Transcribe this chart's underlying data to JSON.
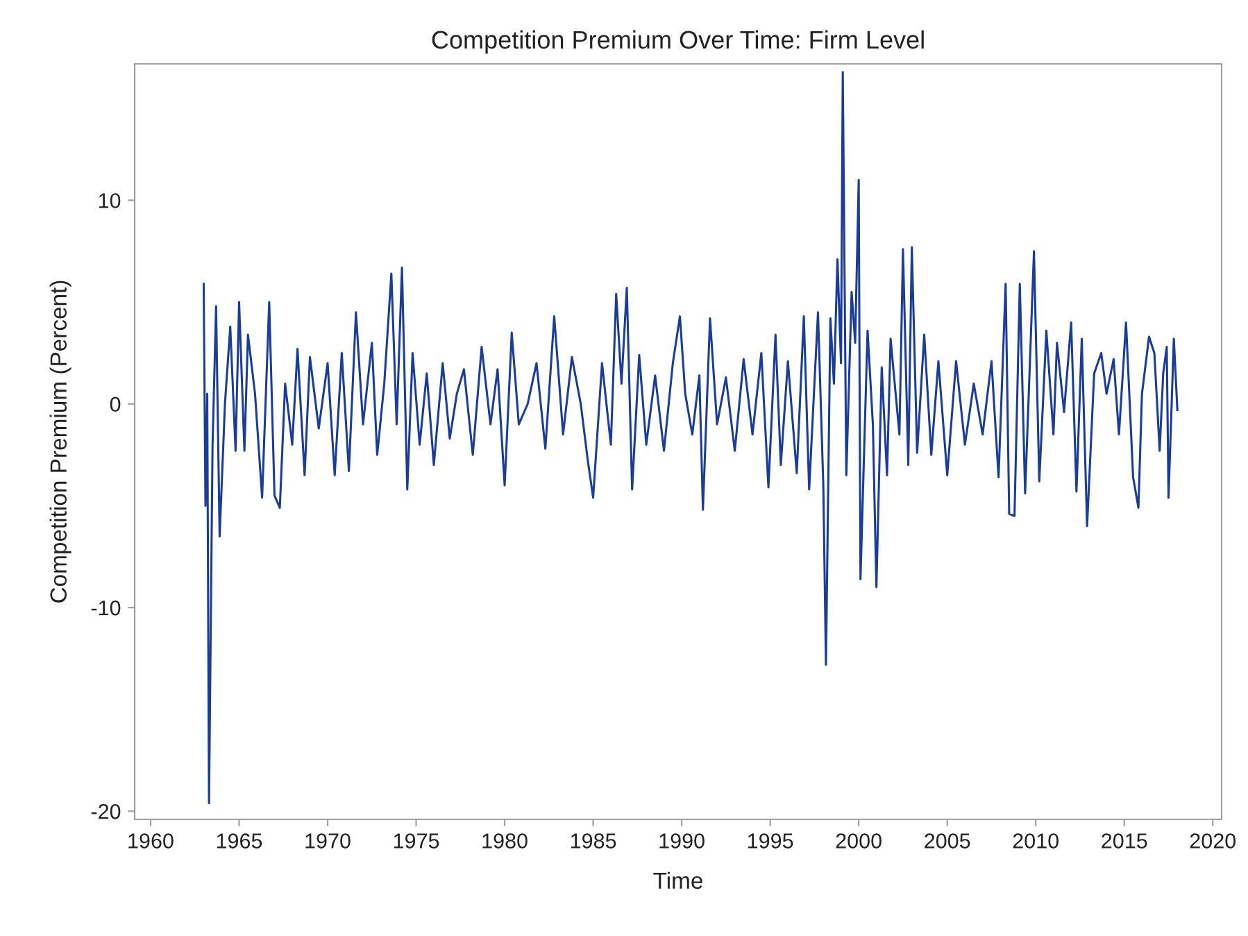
{
  "chart_data": {
    "type": "line",
    "title": "Competition Premium Over Time: Firm Level",
    "xlabel": "Time",
    "ylabel": "Competition Premium (Percent)",
    "xlim": [
      1959.1,
      2020.5
    ],
    "ylim": [
      -20.4,
      16.7
    ],
    "xticks": [
      1960,
      1965,
      1970,
      1975,
      1980,
      1985,
      1990,
      1995,
      2000,
      2005,
      2010,
      2015,
      2020
    ],
    "yticks": [
      -20,
      -10,
      0,
      10
    ],
    "grid": false,
    "series": [
      {
        "color": "#1a3d9c",
        "x": [
          1963.0,
          1963.1,
          1963.2,
          1963.3,
          1963.5,
          1963.7,
          1963.9,
          1964.2,
          1964.5,
          1964.8,
          1965.0,
          1965.3,
          1965.5,
          1965.9,
          1966.3,
          1966.7,
          1967.0,
          1967.3,
          1967.6,
          1968.0,
          1968.3,
          1968.7,
          1969.0,
          1969.5,
          1970.0,
          1970.4,
          1970.8,
          1971.2,
          1971.6,
          1972.0,
          1972.5,
          1972.8,
          1973.2,
          1973.6,
          1973.9,
          1974.2,
          1974.5,
          1974.8,
          1975.2,
          1975.6,
          1976.0,
          1976.5,
          1976.9,
          1977.3,
          1977.7,
          1978.2,
          1978.7,
          1979.2,
          1979.6,
          1980.0,
          1980.4,
          1980.8,
          1981.3,
          1981.8,
          1982.3,
          1982.8,
          1983.3,
          1983.8,
          1984.3,
          1984.7,
          1985.0,
          1985.5,
          1986.0,
          1986.3,
          1986.6,
          1986.9,
          1987.2,
          1987.6,
          1988.0,
          1988.5,
          1989.0,
          1989.5,
          1989.9,
          1990.2,
          1990.6,
          1991.0,
          1991.2,
          1991.6,
          1992.0,
          1992.5,
          1993.0,
          1993.5,
          1994.0,
          1994.5,
          1994.9,
          1995.3,
          1995.6,
          1996.0,
          1996.5,
          1996.9,
          1997.2,
          1997.7,
          1998.0,
          1998.15,
          1998.4,
          1998.6,
          1998.8,
          1999.0,
          1999.1,
          1999.3,
          1999.6,
          1999.8,
          2000.0,
          2000.1,
          2000.5,
          2000.8,
          2001.0,
          2001.3,
          2001.6,
          2001.8,
          2002.3,
          2002.5,
          2002.8,
          2003.0,
          2003.3,
          2003.7,
          2004.1,
          2004.5,
          2005.0,
          2005.5,
          2006.0,
          2006.5,
          2007.0,
          2007.5,
          2007.9,
          2008.3,
          2008.5,
          2008.8,
          2009.1,
          2009.4,
          2009.9,
          2010.2,
          2010.6,
          2011.0,
          2011.2,
          2011.6,
          2012.0,
          2012.3,
          2012.6,
          2012.9,
          2013.3,
          2013.7,
          2014.0,
          2014.4,
          2014.7,
          2015.1,
          2015.5,
          2015.8,
          2016.0,
          2016.4,
          2016.7,
          2017.0,
          2017.2,
          2017.4,
          2017.5,
          2017.8,
          2018.0
        ],
        "values": [
          5.9,
          -5,
          0.5,
          -19.6,
          -2,
          4.8,
          -6.5,
          0,
          3.8,
          -2.3,
          5,
          -2.3,
          3.4,
          0.5,
          -4.6,
          5,
          -4.5,
          -5.1,
          1,
          -2,
          2.7,
          -3.5,
          2.3,
          -1.2,
          2,
          -3.5,
          2.5,
          -3.3,
          4.5,
          -1,
          3,
          -2.5,
          1,
          6.4,
          -1,
          6.7,
          -4.2,
          2.5,
          -2,
          1.5,
          -3,
          2,
          -1.7,
          0.5,
          1.7,
          -2.5,
          2.8,
          -1,
          1.7,
          -4.0,
          3.5,
          -1,
          0,
          2,
          -2.2,
          4.3,
          -1.5,
          2.3,
          0,
          -2.8,
          -4.6,
          2,
          -2,
          5.4,
          1,
          5.7,
          -4.2,
          2.4,
          -2,
          1.4,
          -2.3,
          2,
          4.3,
          0.5,
          -1.5,
          1.4,
          -5.2,
          4.2,
          -1,
          1.3,
          -2.3,
          2.2,
          -1.5,
          2.5,
          -4.1,
          3.4,
          -3,
          2.1,
          -3.4,
          4.3,
          -4.2,
          4.5,
          -4.0,
          -12.8,
          4.2,
          1.0,
          7.1,
          2,
          16.3,
          -3.5,
          5.5,
          3,
          11,
          -8.6,
          3.6,
          -1,
          -9,
          1.8,
          -3.5,
          3.2,
          -1.5,
          7.6,
          -3,
          7.7,
          -2.4,
          3.4,
          -2.5,
          2.1,
          -3.5,
          2.1,
          -2,
          1,
          -1.5,
          2.1,
          -3.6,
          5.9,
          -5.4,
          -5.5,
          5.9,
          -4.4,
          7.5,
          -3.8,
          3.6,
          -1.5,
          3.0,
          -0.4,
          4.0,
          -4.3,
          3.2,
          -6.0,
          1.5,
          2.5,
          0.5,
          2.2,
          -1.5,
          4.0,
          -3.6,
          -5.1,
          0.5,
          3.3,
          2.5,
          -2.3,
          1.5,
          2.8,
          -4.6,
          3.2,
          -0.3
        ]
      }
    ]
  }
}
